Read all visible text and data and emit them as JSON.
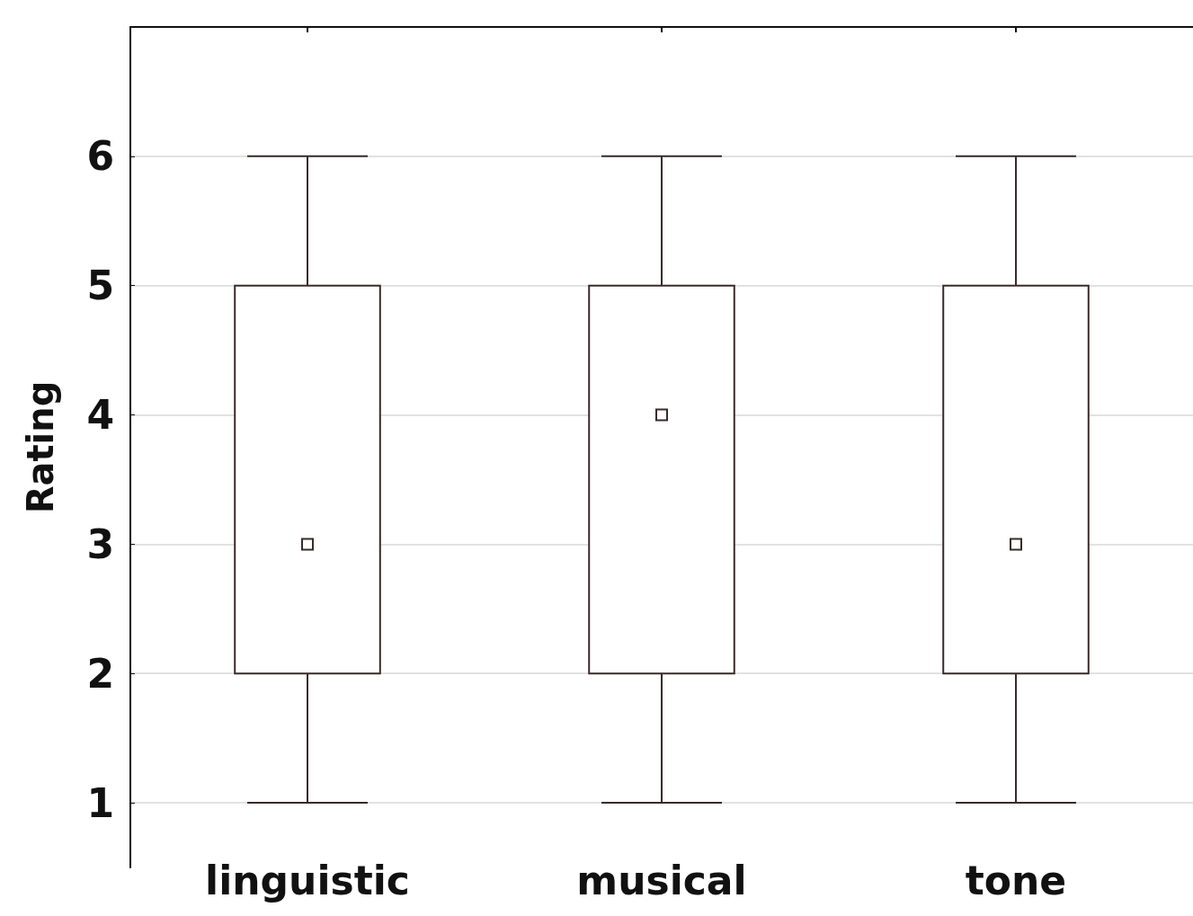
{
  "chart_data": {
    "type": "box",
    "ylabel": "Rating",
    "categories": [
      "linguistic",
      "musical",
      "tone"
    ],
    "boxes": [
      {
        "low": 1,
        "q1": 2,
        "median": 3,
        "q3": 5,
        "high": 6
      },
      {
        "low": 1,
        "q1": 2,
        "median": 4,
        "q3": 5,
        "high": 6
      },
      {
        "low": 1,
        "q1": 2,
        "median": 3,
        "q3": 5,
        "high": 6
      }
    ],
    "color": "#3a2a2a",
    "marker": "square",
    "ylim": [
      0.5,
      7
    ],
    "yticks": [
      1,
      2,
      3,
      4,
      5,
      6
    ],
    "grid": "y"
  }
}
